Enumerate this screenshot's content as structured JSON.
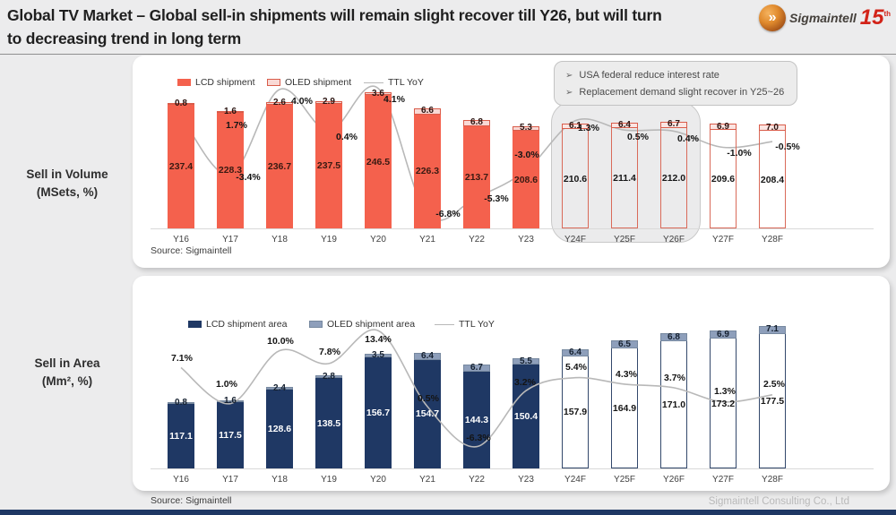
{
  "slide": {
    "title_line1": "Global TV Market – Global sell-in shipments will remain slight recover till Y26, but will turn",
    "title_line2": "to  decreasing trend in long term",
    "footer": "Sigmaintell Consulting Co., Ltd"
  },
  "logo": {
    "glyph": "»",
    "brand": "Sigmaintell",
    "badge": "15",
    "badge_suffix": "th"
  },
  "row_labels": [
    {
      "line1": "Sell in Volume",
      "line2": "(MSets, %)"
    },
    {
      "line1": "Sell in Area",
      "line2": "(Mm², %)"
    }
  ],
  "annotation": {
    "bullet_char": "➢",
    "bullets": [
      "USA federal reduce interest rate",
      "Replacement demand slight recover in Y25~26"
    ]
  },
  "chart_data": [
    {
      "type": "bar",
      "title": "Sell in Volume (MSets, %)",
      "categories": [
        "Y16",
        "Y17",
        "Y18",
        "Y19",
        "Y20",
        "Y21",
        "Y22",
        "Y23",
        "Y24F",
        "Y25F",
        "Y26F",
        "Y27F",
        "Y28F"
      ],
      "series": [
        {
          "name": "LCD shipment",
          "type": "bar",
          "stack": true,
          "values": [
            237.4,
            228.3,
            236.7,
            237.5,
            246.5,
            226.3,
            213.7,
            208.6,
            210.6,
            211.4,
            212.0,
            209.6,
            208.4
          ]
        },
        {
          "name": "OLED shipment",
          "type": "bar",
          "stack": true,
          "values": [
            0.8,
            1.6,
            2.6,
            2.9,
            3.6,
            6.6,
            6.8,
            5.3,
            6.1,
            6.4,
            6.7,
            6.9,
            7.0
          ]
        },
        {
          "name": "TTL YoY",
          "type": "line",
          "unit": "%",
          "values": [
            1.7,
            -3.4,
            4.0,
            0.4,
            4.1,
            -6.8,
            -5.3,
            -3.0,
            1.3,
            0.5,
            0.4,
            -1.0,
            -0.5
          ]
        }
      ],
      "forecast_from_index": 8,
      "ylim": [
        105,
        265
      ],
      "yoy_lim": [
        -8,
        5
      ],
      "legend_position": "top",
      "grid": false,
      "source": "Source: Sigmaintell",
      "colors": {
        "lcd": "#f4614d",
        "lcd_label": "#3a1a12",
        "oled": "#f9d9d5",
        "oled_fc": "#fbe5e2",
        "oled_border": "#d95c4a",
        "oled_label": "#2a1310",
        "forecast_border": "#d96a59",
        "fc_label": "#161616",
        "line": "#b8b8b8"
      }
    },
    {
      "type": "bar",
      "title": "Sell in Area (Mm², %)",
      "categories": [
        "Y16",
        "Y17",
        "Y18",
        "Y19",
        "Y20",
        "Y21",
        "Y22",
        "Y23",
        "Y24F",
        "Y25F",
        "Y26F",
        "Y27F",
        "Y28F"
      ],
      "series": [
        {
          "name": "LCD shipment area",
          "type": "bar",
          "stack": true,
          "values": [
            117.1,
            117.5,
            128.6,
            138.5,
            156.7,
            154.7,
            144.3,
            150.4,
            157.9,
            164.9,
            171.0,
            173.2,
            177.5
          ]
        },
        {
          "name": "OLED shipment area",
          "type": "bar",
          "stack": true,
          "values": [
            0.8,
            1.6,
            2.4,
            2.8,
            3.5,
            6.4,
            6.7,
            5.5,
            6.4,
            6.5,
            6.8,
            6.9,
            7.1
          ]
        },
        {
          "name": "TTL YoY",
          "type": "line",
          "unit": "%",
          "values": [
            7.1,
            1.0,
            10.0,
            7.8,
            13.4,
            0.5,
            -6.3,
            3.2,
            5.4,
            4.3,
            3.7,
            1.3,
            2.5
          ]
        }
      ],
      "forecast_from_index": 8,
      "ylim": [
        60,
        195
      ],
      "yoy_lim": [
        -10,
        16
      ],
      "legend_position": "top",
      "grid": false,
      "source": "Source: Sigmaintell",
      "colors": {
        "lcd": "#1f3864",
        "lcd_label": "#ffffff",
        "oled": "#8e9fbb",
        "oled_fc": "#8e9fbb",
        "oled_border": "#76889f",
        "oled_label": "#15202f",
        "forecast_border": "#33486b",
        "fc_label": "#161616",
        "line": "#b8b8b8"
      }
    }
  ]
}
